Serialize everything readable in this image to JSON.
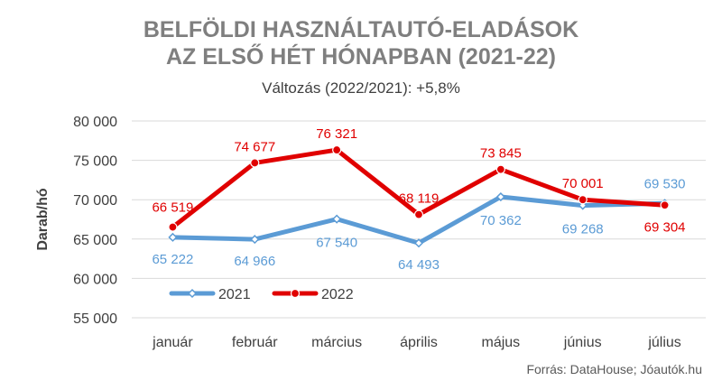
{
  "title_line1": "BELFÖLDI HASZNÁLTAUTÓ-ELADÁSOK",
  "title_line2": "AZ ELSŐ HÉT HÓNAPBAN (2021-22)",
  "subtitle": "Változás (2022/2021): +5,8%",
  "source": "Forrás: DataHouse; Jóautók.hu",
  "chart_data": {
    "type": "line",
    "ylabel": "Darab/hó",
    "ylim": [
      55000,
      80000
    ],
    "yticks": [
      55000,
      60000,
      65000,
      70000,
      75000,
      80000
    ],
    "ytick_labels": [
      "55 000",
      "60 000",
      "65 000",
      "70 000",
      "75 000",
      "80 000"
    ],
    "categories": [
      "január",
      "február",
      "március",
      "április",
      "május",
      "június",
      "július"
    ],
    "grid": true,
    "legend": "bottom-left",
    "series": [
      {
        "name": "2021",
        "color": "#5b9bd5",
        "values": [
          65222,
          64966,
          67540,
          64493,
          70362,
          69268,
          69530
        ],
        "labels": [
          "65 222",
          "64 966",
          "67 540",
          "64 493",
          "70 362",
          "69 268",
          "69 530"
        ]
      },
      {
        "name": "2022",
        "color": "#e00000",
        "values": [
          66519,
          74677,
          76321,
          68119,
          73845,
          70001,
          69304
        ],
        "labels": [
          "66 519",
          "74 677",
          "76 321",
          "68 119",
          "73 845",
          "70 001",
          "69 304"
        ]
      }
    ]
  }
}
